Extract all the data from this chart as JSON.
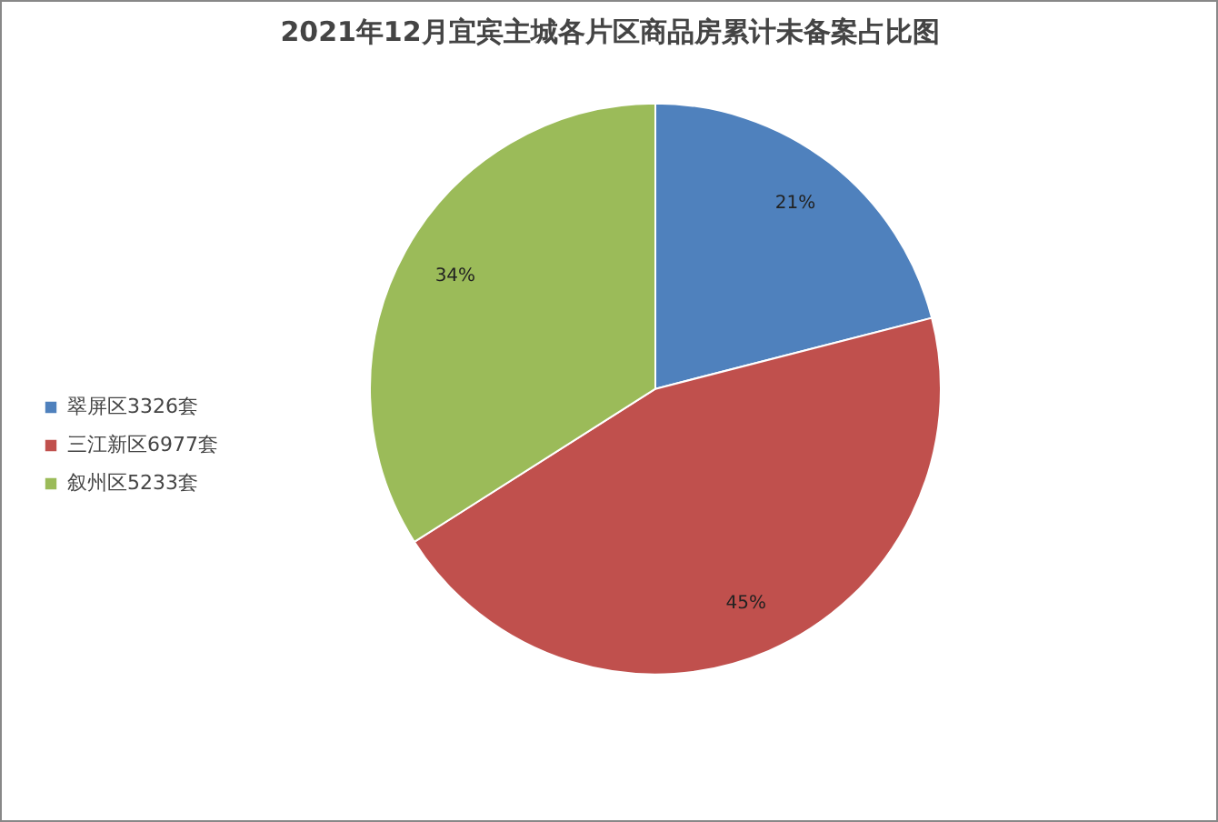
{
  "chart_data": {
    "type": "pie",
    "title": "2021年12月宜宾主城各片区商品房累计未备案占比图",
    "categories": [
      "翠屏区3326套",
      "三江新区6977套",
      "叙州区5233套"
    ],
    "values": [
      21,
      45,
      34
    ],
    "colors": [
      "#4f81bd",
      "#c0504d",
      "#9bbb59"
    ],
    "value_labels": [
      "21%",
      "45%",
      "34%"
    ],
    "legend": "left"
  }
}
